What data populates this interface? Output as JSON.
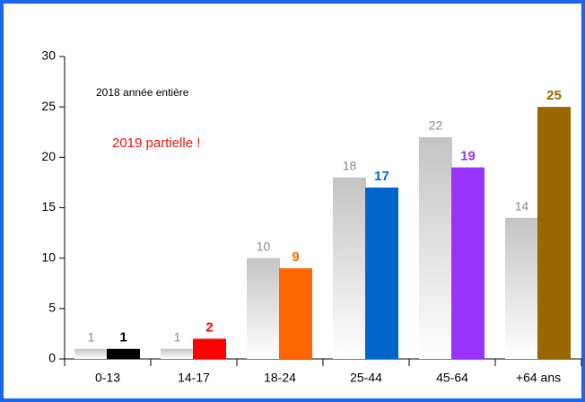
{
  "chart_data": {
    "type": "bar",
    "categories": [
      "0-13",
      "14-17",
      "18-24",
      "25-44",
      "45-64",
      "+64 ans"
    ],
    "series": [
      {
        "name": "2018 année entière",
        "color": "#c4c4c4",
        "values": [
          1,
          1,
          10,
          18,
          22,
          14
        ]
      },
      {
        "name": "2019 partielle !",
        "colors": [
          "#000000",
          "#ff0000",
          "#ff6600",
          "#0066cc",
          "#9933ff",
          "#996600"
        ],
        "values": [
          1,
          2,
          9,
          17,
          19,
          25
        ]
      }
    ],
    "ylim": [
      0,
      30
    ],
    "yticks": [
      0,
      5,
      10,
      15,
      20,
      25,
      30
    ],
    "grid": false
  }
}
